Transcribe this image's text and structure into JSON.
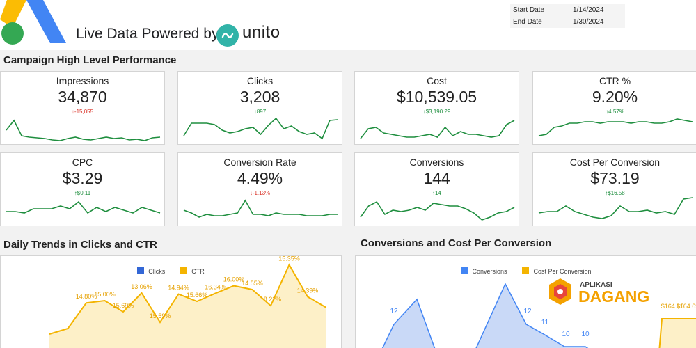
{
  "header": {
    "live_text": "Live Data Powered by",
    "brand": "unito",
    "start_label": "Start Date",
    "start_value": "1/14/2024",
    "end_label": "End Date",
    "end_value": "1/30/2024"
  },
  "section1_title": "Campaign High Level Performance",
  "cards": [
    {
      "label": "Impressions",
      "value": "34,870",
      "delta": "↓-15,055",
      "dir": "down",
      "spark": [
        22,
        8,
        30,
        32,
        33,
        34,
        36,
        37,
        34,
        32,
        35,
        36,
        34,
        32,
        34,
        33,
        36,
        35,
        37,
        33,
        32
      ]
    },
    {
      "label": "Clicks",
      "value": "3,208",
      "delta": "↑897",
      "dir": "up",
      "spark": [
        30,
        12,
        12,
        12,
        14,
        22,
        26,
        24,
        20,
        18,
        28,
        15,
        5,
        20,
        16,
        24,
        28,
        26,
        34,
        8,
        7
      ]
    },
    {
      "label": "Cost",
      "value": "$10,539.05",
      "delta": "↑$3,190.29",
      "dir": "up",
      "spark": [
        34,
        20,
        18,
        26,
        28,
        30,
        32,
        32,
        30,
        28,
        32,
        18,
        30,
        24,
        28,
        28,
        30,
        32,
        30,
        14,
        8
      ]
    },
    {
      "label": "CTR %",
      "value": "9.20%",
      "delta": "↑4.57%",
      "dir": "up",
      "spark": [
        30,
        28,
        18,
        16,
        12,
        12,
        10,
        10,
        12,
        10,
        10,
        10,
        12,
        10,
        10,
        12,
        12,
        10,
        6,
        8,
        10
      ]
    },
    {
      "label": "CPC",
      "value": "$3.29",
      "delta": "↑$0.11",
      "dir": "up",
      "spark": [
        22,
        22,
        24,
        18,
        18,
        18,
        14,
        18,
        8,
        24,
        16,
        22,
        16,
        20,
        24,
        16,
        20,
        24
      ]
    },
    {
      "label": "Conversion Rate",
      "value": "4.49%",
      "delta": "↓-1.13%",
      "dir": "down",
      "spark": [
        20,
        24,
        30,
        26,
        28,
        28,
        26,
        24,
        6,
        26,
        26,
        28,
        24,
        26,
        26,
        26,
        28,
        28,
        28,
        26,
        26
      ]
    },
    {
      "label": "Conversions",
      "value": "144",
      "delta": "↑14",
      "dir": "up",
      "spark": [
        30,
        14,
        8,
        26,
        20,
        22,
        20,
        16,
        20,
        10,
        12,
        14,
        14,
        18,
        24,
        34,
        30,
        24,
        22,
        16
      ]
    },
    {
      "label": "Cost Per Conversion",
      "value": "$73.19",
      "delta": "↑$16.58",
      "dir": "up",
      "spark": [
        24,
        22,
        22,
        14,
        22,
        26,
        30,
        32,
        28,
        14,
        22,
        22,
        20,
        24,
        22,
        26,
        4,
        2
      ]
    }
  ],
  "section2_title": "Daily Trends in Clicks and CTR",
  "section3_title": "Conversions and Cost Per Conversion",
  "chart_data": [
    {
      "type": "bar",
      "title": "Daily Trends in Clicks and CTR",
      "series": [
        {
          "name": "Clicks",
          "values": []
        },
        {
          "name": "CTR",
          "values": [
            12.0,
            12.5,
            14.8,
            15.0,
            14.0,
            15.69,
            13.06,
            15.59,
            14.94,
            15.66,
            16.34,
            16.0,
            14.55,
            18.22,
            15.35,
            14.39
          ]
        }
      ],
      "data_labels": [
        "14.80%",
        "15.00%",
        "15.69%",
        "13.06%",
        "15.59%",
        "14.94%",
        "15.66%",
        "16.34%",
        "16.00%",
        "14.55%",
        "18.22%",
        "15.35%",
        "14.39%"
      ],
      "colors": {
        "Clicks": "#3367d6",
        "CTR": "#f4b400"
      },
      "legend": "top"
    },
    {
      "type": "area",
      "title": "Conversions and Cost Per Conversion",
      "series": [
        {
          "name": "Conversions",
          "values": [
            6,
            7,
            12,
            12,
            9,
            9,
            15,
            12,
            11,
            10,
            10
          ]
        },
        {
          "name": "Cost Per Conversion",
          "values": [
            null,
            null,
            null,
            null,
            null,
            null,
            null,
            null,
            null,
            null,
            164.65
          ]
        }
      ],
      "data_labels": [
        "12",
        "12",
        "11",
        "10",
        "10",
        "$164.65",
        "$164.69"
      ],
      "colors": {
        "Conversions": "#4285f4",
        "Cost Per Conversion": "#f4b400"
      },
      "legend": "top"
    }
  ],
  "legend1": {
    "a": "Clicks",
    "b": "CTR"
  },
  "legend2": {
    "a": "Conversions",
    "b": "Cost Per Conversion"
  },
  "watermark": {
    "top": "APLIKASI",
    "bottom": "DAGANG"
  },
  "colors": {
    "accent_green": "#1e8e3e",
    "accent_red": "#d93025",
    "blue": "#4285f4",
    "yellow": "#f4b400",
    "teal": "#31b3a8"
  }
}
